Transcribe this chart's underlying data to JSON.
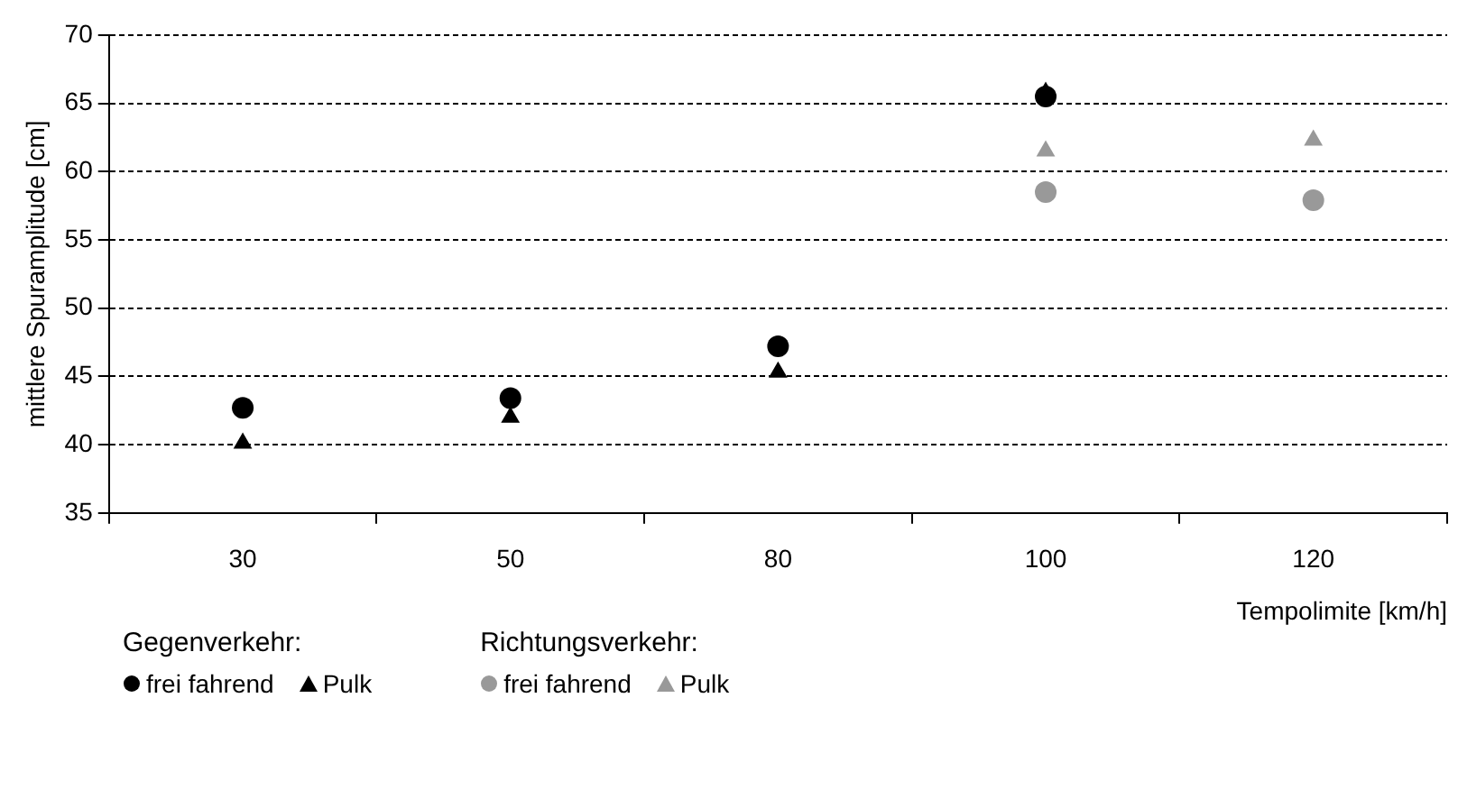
{
  "chart_data": {
    "type": "scatter",
    "xlabel": "Tempolimite [km/h]",
    "ylabel": "mittlere Spuramplitude [cm]",
    "categories": [
      "30",
      "50",
      "80",
      "100",
      "120"
    ],
    "series": [
      {
        "name": "frei fahrend",
        "color": "#000000",
        "marker": "circle",
        "values": [
          42.7,
          43.4,
          47.2,
          65.5,
          null
        ]
      },
      {
        "name": "Pulk",
        "color": "#000000",
        "marker": "triangle",
        "values": [
          40.1,
          42.0,
          45.3,
          65.8,
          null
        ]
      },
      {
        "name": "frei fahrend",
        "color": "#999999",
        "marker": "circle",
        "values": [
          null,
          null,
          null,
          58.5,
          57.9
        ]
      },
      {
        "name": "Pulk",
        "color": "#999999",
        "marker": "triangle",
        "values": [
          null,
          null,
          null,
          61.5,
          62.3
        ]
      }
    ],
    "annotations": [
      "Gegenverkehr:",
      "Richtungsverkehr:"
    ],
    "ylim": [
      35,
      70
    ],
    "yticks": [
      35,
      40,
      45,
      50,
      55,
      60,
      65,
      70
    ],
    "grid": "y",
    "legend": "bottom",
    "line_style": "dashed"
  }
}
